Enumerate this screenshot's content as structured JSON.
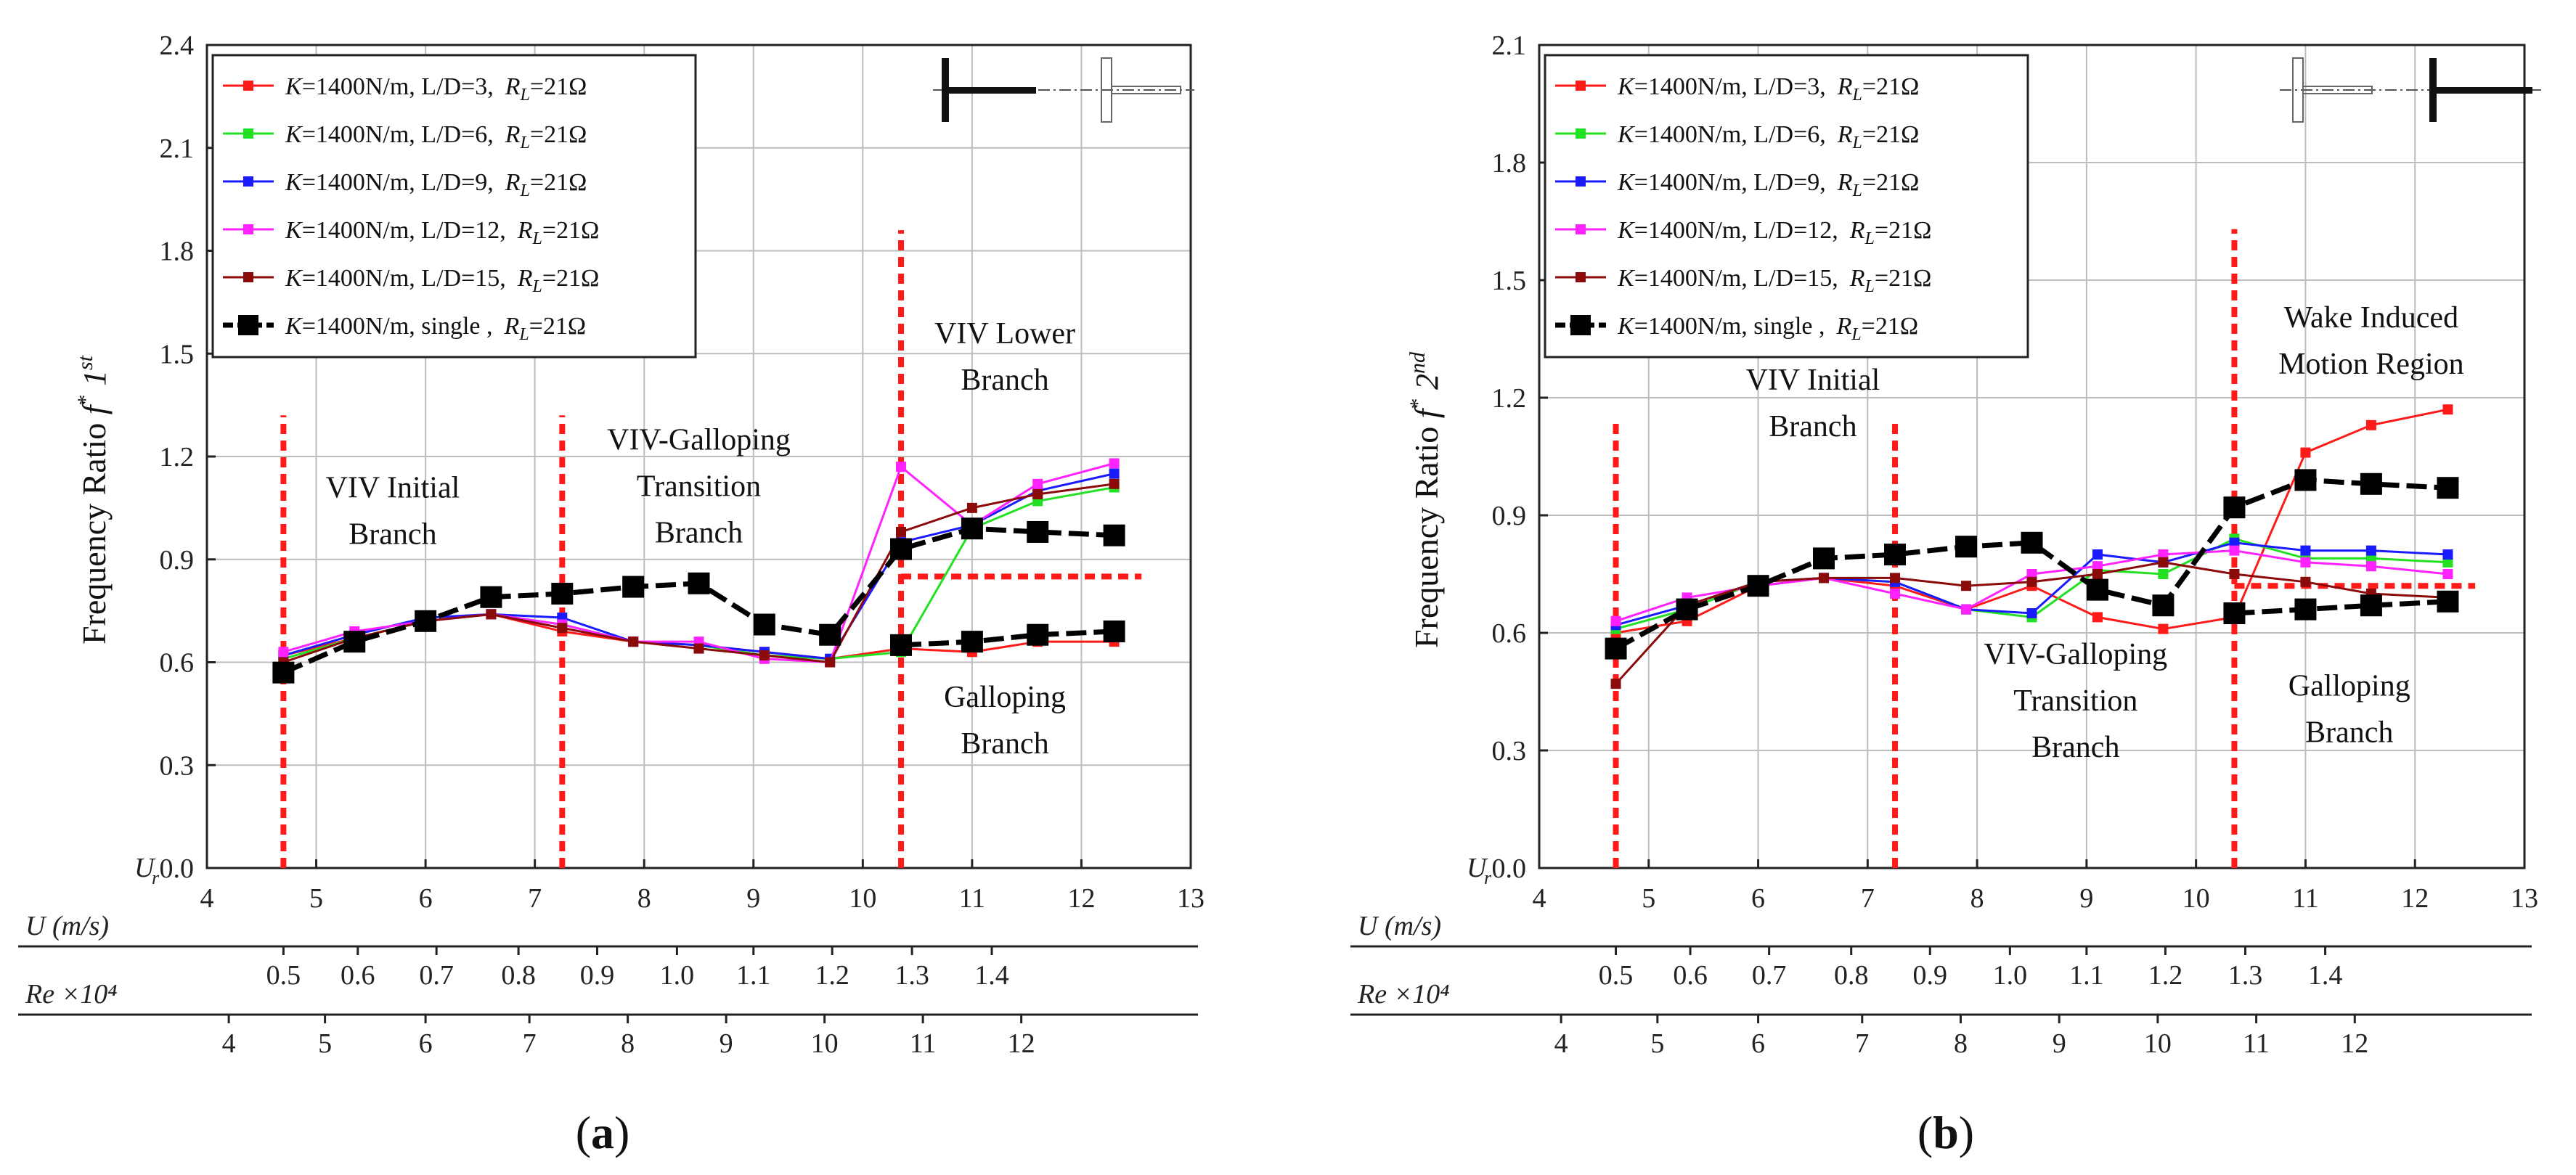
{
  "chart_data": [
    {
      "id": "a",
      "type": "line",
      "caption": "(a)",
      "ylabel": "Frequency Ratio",
      "ylabel_sym": "f*",
      "ylabel_sup": "1st",
      "ylim": [
        0,
        2.4
      ],
      "yticks": [
        "0.0",
        "0.3",
        "0.6",
        "0.9",
        "1.2",
        "1.5",
        "1.8",
        "2.1",
        "2.4"
      ],
      "xlim": [
        4,
        13
      ],
      "xticks": [
        "4",
        "5",
        "6",
        "7",
        "8",
        "9",
        "10",
        "11",
        "12",
        "13"
      ],
      "axis_labels": {
        "ur": "Ur",
        "u": "U (m/s)",
        "re": "Re ×10⁴"
      },
      "u_ticks": [
        {
          "ur": 4.7,
          "label": "0.5"
        },
        {
          "ur": 5.38,
          "label": "0.6"
        },
        {
          "ur": 6.1,
          "label": "0.7"
        },
        {
          "ur": 6.85,
          "label": "0.8"
        },
        {
          "ur": 7.57,
          "label": "0.9"
        },
        {
          "ur": 8.3,
          "label": "1.0"
        },
        {
          "ur": 9.0,
          "label": "1.1"
        },
        {
          "ur": 9.72,
          "label": "1.2"
        },
        {
          "ur": 10.45,
          "label": "1.3"
        },
        {
          "ur": 11.18,
          "label": "1.4"
        }
      ],
      "re_ticks": [
        {
          "ur": 4.2,
          "label": "4"
        },
        {
          "ur": 5.08,
          "label": "5"
        },
        {
          "ur": 6.0,
          "label": "6"
        },
        {
          "ur": 6.95,
          "label": "7"
        },
        {
          "ur": 7.85,
          "label": "8"
        },
        {
          "ur": 8.75,
          "label": "9"
        },
        {
          "ur": 9.65,
          "label": "10"
        },
        {
          "ur": 10.55,
          "label": "11"
        },
        {
          "ur": 11.45,
          "label": "12"
        }
      ],
      "series": [
        {
          "name": "K=1400N/m, L/D=3, RL=21Ω",
          "k": "K",
          "ld": "=1400N/m, L/D=3,",
          "r": "21Ω",
          "color": "#ff1a1a",
          "marker": "small",
          "x": [
            4.7,
            5.35,
            6.0,
            6.6,
            7.25,
            7.9,
            8.5,
            9.1,
            9.7,
            10.35,
            11.0,
            11.6,
            12.3
          ],
          "y": [
            0.62,
            0.67,
            0.72,
            0.74,
            0.69,
            0.66,
            0.65,
            0.63,
            0.61,
            0.64,
            0.63,
            0.66,
            0.66
          ]
        },
        {
          "name": "K=1400N/m, L/D=6, RL=21Ω",
          "k": "K",
          "ld": "=1400N/m, L/D=6,",
          "r": "21Ω",
          "color": "#22e022",
          "marker": "small",
          "x": [
            4.7,
            5.35,
            6.0,
            6.6,
            7.25,
            7.9,
            8.5,
            9.1,
            9.7,
            10.35,
            11.0,
            11.6,
            12.3
          ],
          "y": [
            0.61,
            0.67,
            0.72,
            0.74,
            0.71,
            0.66,
            0.65,
            0.62,
            0.61,
            0.63,
            0.99,
            1.07,
            1.11
          ]
        },
        {
          "name": "K=1400N/m, L/D=9, RL=21Ω",
          "k": "K",
          "ld": "=1400N/m, L/D=9,",
          "r": "21Ω",
          "color": "#1a1aff",
          "marker": "small",
          "x": [
            4.7,
            5.35,
            6.0,
            6.6,
            7.25,
            7.9,
            8.5,
            9.1,
            9.7,
            10.35,
            11.0,
            11.6,
            12.3
          ],
          "y": [
            0.62,
            0.68,
            0.73,
            0.74,
            0.73,
            0.66,
            0.65,
            0.63,
            0.61,
            0.95,
            1.0,
            1.1,
            1.15
          ]
        },
        {
          "name": "K=1400N/m, L/D=12, RL=21Ω",
          "k": "K",
          "ld": "=1400N/m, L/D=12,",
          "r": "21Ω",
          "color": "#ff22ff",
          "marker": "small",
          "x": [
            4.7,
            5.35,
            6.0,
            6.6,
            7.25,
            7.9,
            8.5,
            9.1,
            9.7,
            10.35,
            11.0,
            11.6,
            12.3
          ],
          "y": [
            0.63,
            0.69,
            0.72,
            0.74,
            0.71,
            0.66,
            0.66,
            0.61,
            0.6,
            1.17,
            1.0,
            1.12,
            1.18
          ]
        },
        {
          "name": "K=1400N/m, L/D=15, RL=21Ω",
          "k": "K",
          "ld": "=1400N/m, L/D=15,",
          "r": "21Ω",
          "color": "#8b0a0a",
          "marker": "small",
          "x": [
            4.7,
            5.35,
            6.0,
            6.6,
            7.25,
            7.9,
            8.5,
            9.1,
            9.7,
            10.35,
            11.0,
            11.6,
            12.3
          ],
          "y": [
            0.6,
            0.67,
            0.72,
            0.74,
            0.7,
            0.66,
            0.64,
            0.62,
            0.6,
            0.98,
            1.05,
            1.09,
            1.12
          ]
        },
        {
          "name": "K=1400N/m, single, RL=21Ω",
          "k": "K",
          "ld": "=1400N/m, single ,",
          "r": "21Ω",
          "color": "#000000",
          "marker": "big",
          "x": [
            4.7,
            5.35,
            6.0,
            6.6,
            7.25,
            7.9,
            8.5,
            9.1,
            9.7,
            10.35,
            11.0,
            11.6,
            12.3
          ],
          "y": [
            0.57,
            0.66,
            0.72,
            0.79,
            0.8,
            0.82,
            0.83,
            0.71,
            0.68,
            0.93,
            0.99,
            0.98,
            0.97
          ]
        },
        {
          "name": "K=1400N/m, single, RL=21Ω (lower)",
          "k": "",
          "ld": "",
          "r": "",
          "color": "#000000",
          "marker": "big",
          "nolegend": true,
          "x": [
            10.35,
            11.0,
            11.6,
            12.3
          ],
          "y": [
            0.65,
            0.66,
            0.68,
            0.69
          ]
        }
      ],
      "vlines": [
        4.7,
        7.25,
        10.35
      ],
      "vline_top": [
        1.32,
        1.32,
        1.86
      ],
      "hline": {
        "x0": 10.35,
        "x1": 12.55,
        "y": 0.85
      },
      "annotations": [
        {
          "text": [
            "VIV Initial",
            "Branch"
          ],
          "x": 5.7,
          "y": 1.08
        },
        {
          "text": [
            "VIV-Galloping",
            "Transition",
            "Branch"
          ],
          "x": 8.5,
          "y": 1.22
        },
        {
          "text": [
            "VIV Lower",
            "Branch"
          ],
          "x": 11.3,
          "y": 1.53
        },
        {
          "text": [
            "Galloping",
            "Branch"
          ],
          "x": 11.3,
          "y": 0.47
        }
      ],
      "inset": "left"
    },
    {
      "id": "b",
      "type": "line",
      "caption": "(b)",
      "ylabel": "Frequency Ratio",
      "ylabel_sym": "f*",
      "ylabel_sup": "2nd",
      "ylim": [
        0,
        2.1
      ],
      "yticks": [
        "0.0",
        "0.3",
        "0.6",
        "0.9",
        "1.2",
        "1.5",
        "1.8",
        "2.1"
      ],
      "xlim": [
        4,
        13
      ],
      "xticks": [
        "4",
        "5",
        "6",
        "7",
        "8",
        "9",
        "10",
        "11",
        "12",
        "13"
      ],
      "axis_labels": {
        "ur": "Ur",
        "u": "U (m/s)",
        "re": "Re ×10⁴"
      },
      "u_ticks": [
        {
          "ur": 4.7,
          "label": "0.5"
        },
        {
          "ur": 5.38,
          "label": "0.6"
        },
        {
          "ur": 6.1,
          "label": "0.7"
        },
        {
          "ur": 6.85,
          "label": "0.8"
        },
        {
          "ur": 7.57,
          "label": "0.9"
        },
        {
          "ur": 8.3,
          "label": "1.0"
        },
        {
          "ur": 9.0,
          "label": "1.1"
        },
        {
          "ur": 9.72,
          "label": "1.2"
        },
        {
          "ur": 10.45,
          "label": "1.3"
        },
        {
          "ur": 11.18,
          "label": "1.4"
        }
      ],
      "re_ticks": [
        {
          "ur": 4.2,
          "label": "4"
        },
        {
          "ur": 5.08,
          "label": "5"
        },
        {
          "ur": 6.0,
          "label": "6"
        },
        {
          "ur": 6.95,
          "label": "7"
        },
        {
          "ur": 7.85,
          "label": "8"
        },
        {
          "ur": 8.75,
          "label": "9"
        },
        {
          "ur": 9.65,
          "label": "10"
        },
        {
          "ur": 10.55,
          "label": "11"
        },
        {
          "ur": 11.45,
          "label": "12"
        }
      ],
      "series": [
        {
          "name": "K=1400N/m, L/D=3, RL=21Ω",
          "k": "K",
          "ld": "=1400N/m, L/D=3,",
          "r": "21Ω",
          "color": "#ff1a1a",
          "marker": "small",
          "x": [
            4.7,
            5.35,
            6.0,
            6.6,
            7.25,
            7.9,
            8.5,
            9.1,
            9.7,
            10.35,
            11.0,
            11.6,
            12.3
          ],
          "y": [
            0.6,
            0.63,
            0.72,
            0.74,
            0.72,
            0.66,
            0.72,
            0.64,
            0.61,
            0.64,
            1.06,
            1.13,
            1.17
          ]
        },
        {
          "name": "K=1400N/m, L/D=6, RL=21Ω",
          "k": "K",
          "ld": "=1400N/m, L/D=6,",
          "r": "21Ω",
          "color": "#22e022",
          "marker": "small",
          "x": [
            4.7,
            5.35,
            6.0,
            6.6,
            7.25,
            7.9,
            8.5,
            9.1,
            9.7,
            10.35,
            11.0,
            11.6,
            12.3
          ],
          "y": [
            0.61,
            0.66,
            0.73,
            0.74,
            0.73,
            0.66,
            0.64,
            0.76,
            0.75,
            0.84,
            0.79,
            0.79,
            0.78
          ]
        },
        {
          "name": "K=1400N/m, L/D=9, RL=21Ω",
          "k": "K",
          "ld": "=1400N/m, L/D=9,",
          "r": "21Ω",
          "color": "#1a1aff",
          "marker": "small",
          "x": [
            4.7,
            5.35,
            6.0,
            6.6,
            7.25,
            7.9,
            8.5,
            9.1,
            9.7,
            10.35,
            11.0,
            11.6,
            12.3
          ],
          "y": [
            0.62,
            0.67,
            0.73,
            0.74,
            0.73,
            0.66,
            0.65,
            0.8,
            0.78,
            0.83,
            0.81,
            0.81,
            0.8
          ]
        },
        {
          "name": "K=1400N/m, L/D=12, RL=21Ω",
          "k": "K",
          "ld": "=1400N/m, L/D=12,",
          "r": "21Ω",
          "color": "#ff22ff",
          "marker": "small",
          "x": [
            4.7,
            5.35,
            6.0,
            6.6,
            7.25,
            7.9,
            8.5,
            9.1,
            9.7,
            10.35,
            11.0,
            11.6,
            12.3
          ],
          "y": [
            0.63,
            0.69,
            0.72,
            0.74,
            0.7,
            0.66,
            0.75,
            0.77,
            0.8,
            0.81,
            0.78,
            0.77,
            0.75
          ]
        },
        {
          "name": "K=1400N/m, L/D=15, RL=21Ω",
          "k": "K",
          "ld": "=1400N/m, L/D=15,",
          "r": "21Ω",
          "color": "#8b0a0a",
          "marker": "small",
          "x": [
            4.7,
            5.35,
            6.0,
            6.6,
            7.25,
            7.9,
            8.5,
            9.1,
            9.7,
            10.35,
            11.0,
            11.6,
            12.3
          ],
          "y": [
            0.47,
            0.67,
            0.73,
            0.74,
            0.74,
            0.72,
            0.73,
            0.75,
            0.78,
            0.75,
            0.73,
            0.7,
            0.69
          ]
        },
        {
          "name": "K=1400N/m, single, RL=21Ω",
          "k": "K",
          "ld": "=1400N/m, single ,",
          "r": "21Ω",
          "color": "#000000",
          "marker": "big",
          "x": [
            4.7,
            5.35,
            6.0,
            6.6,
            7.25,
            7.9,
            8.5,
            9.1,
            9.7,
            10.35,
            11.0,
            11.6,
            12.3
          ],
          "y": [
            0.56,
            0.66,
            0.72,
            0.79,
            0.8,
            0.82,
            0.83,
            0.71,
            0.67,
            0.92,
            0.99,
            0.98,
            0.97
          ]
        },
        {
          "name": "K=1400N/m, single, RL=21Ω (lower)",
          "k": "",
          "ld": "",
          "r": "",
          "color": "#000000",
          "marker": "big",
          "nolegend": true,
          "x": [
            10.35,
            11.0,
            11.6,
            12.3
          ],
          "y": [
            0.65,
            0.66,
            0.67,
            0.68
          ]
        }
      ],
      "vlines": [
        4.7,
        7.25,
        10.35
      ],
      "vline_top": [
        1.15,
        1.15,
        1.63
      ],
      "hline": {
        "x0": 10.35,
        "x1": 12.55,
        "y": 0.72
      },
      "annotations": [
        {
          "text": [
            "VIV Initial",
            "Branch"
          ],
          "x": 6.5,
          "y": 1.22
        },
        {
          "text": [
            "VIV-Galloping",
            "Transition",
            "Branch"
          ],
          "x": 8.9,
          "y": 0.52
        },
        {
          "text": [
            "Wake Induced",
            "Motion Region"
          ],
          "x": 11.6,
          "y": 1.38
        },
        {
          "text": [
            "Galloping",
            "Branch"
          ],
          "x": 11.4,
          "y": 0.44
        }
      ],
      "inset": "right"
    }
  ]
}
